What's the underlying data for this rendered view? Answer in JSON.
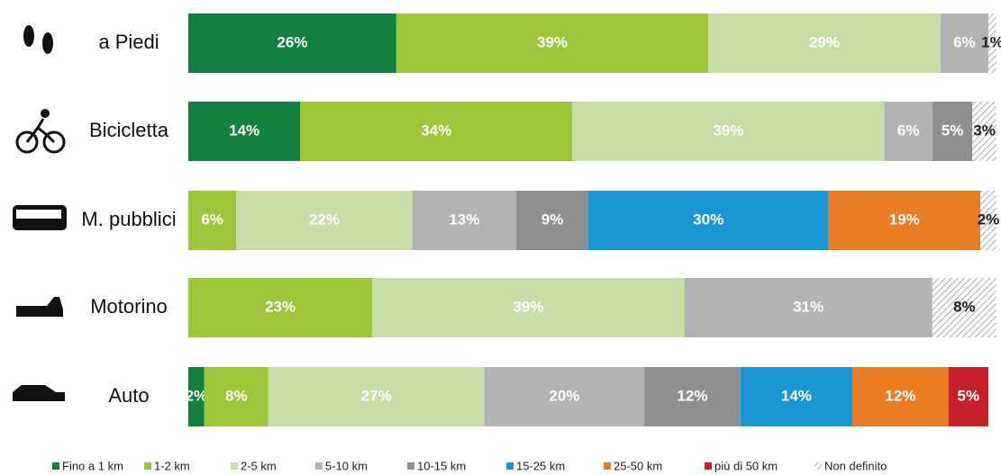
{
  "chart_data": {
    "type": "stacked_barh",
    "categories": [
      "a Piedi",
      "Bicicletta",
      "M. pubblici",
      "Motorino",
      "Auto"
    ],
    "xlim": [
      0,
      100
    ],
    "series": [
      {
        "name": "Fino a 1 km",
        "color": "#138040",
        "values": [
          26,
          14,
          null,
          null,
          2
        ],
        "value_labels": [
          "26%",
          "14%",
          null,
          null,
          "2%"
        ]
      },
      {
        "name": "1-2 km",
        "color": "#9dc63b",
        "values": [
          39,
          34,
          6,
          23,
          8
        ],
        "value_labels": [
          "39%",
          "34%",
          "6%",
          "23%",
          "8%"
        ]
      },
      {
        "name": "2-5 km",
        "color": "#c7dea6",
        "values": [
          29,
          39,
          22,
          39,
          27
        ],
        "value_labels": [
          "29%",
          "39%",
          "22%",
          "39%",
          "27%"
        ]
      },
      {
        "name": "5-10 km",
        "color": "#b2b3b5",
        "values": [
          6,
          6,
          13,
          31,
          20
        ],
        "value_labels": [
          "6%",
          "6%",
          "13%",
          "31%",
          "20%"
        ]
      },
      {
        "name": "10-15 km",
        "color": "#8d8f91",
        "values": [
          null,
          5,
          9,
          null,
          12
        ],
        "value_labels": [
          null,
          "5%",
          "9%",
          null,
          "12%"
        ]
      },
      {
        "name": "15-25 km",
        "color": "#1a96d4",
        "values": [
          null,
          null,
          30,
          null,
          14
        ],
        "value_labels": [
          null,
          null,
          "30%",
          null,
          "14%"
        ]
      },
      {
        "name": "25-50 km",
        "color": "#e87d25",
        "values": [
          null,
          null,
          19,
          null,
          12
        ],
        "value_labels": [
          null,
          null,
          "19%",
          null,
          "12%"
        ]
      },
      {
        "name": "più di 50 km",
        "color": "#c8202a",
        "values": [
          null,
          null,
          null,
          null,
          5
        ],
        "value_labels": [
          null,
          null,
          null,
          null,
          "5%"
        ]
      },
      {
        "name": "Non definito",
        "color": "hatch",
        "values": [
          1,
          3,
          2,
          8,
          null
        ],
        "value_labels": [
          "1%",
          "3%",
          "2%",
          "8%",
          null
        ]
      }
    ]
  }
}
